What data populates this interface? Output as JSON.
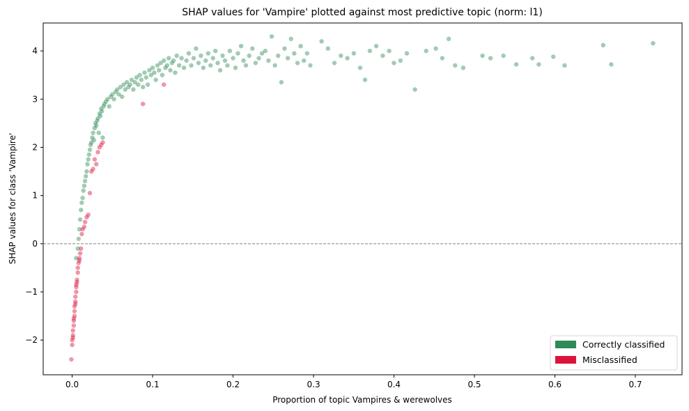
{
  "chart_data": {
    "type": "scatter",
    "title": "SHAP values for 'Vampire' plotted against most predictive topic (norm: l1)",
    "xlabel": "Proportion of topic Vampires & werewolves",
    "ylabel": "SHAP values for class 'Vampire'",
    "xlim": [
      -0.036,
      0.758
    ],
    "ylim": [
      -2.72,
      4.58
    ],
    "xticks": [
      0.0,
      0.1,
      0.2,
      0.3,
      0.4,
      0.5,
      0.6,
      0.7
    ],
    "xtick_labels": [
      "0.0",
      "0.1",
      "0.2",
      "0.3",
      "0.4",
      "0.5",
      "0.6",
      "0.7"
    ],
    "yticks": [
      -2,
      -1,
      0,
      1,
      2,
      3,
      4
    ],
    "ytick_labels": [
      "−2",
      "−1",
      "0",
      "1",
      "2",
      "3",
      "4"
    ],
    "reference_line": {
      "y": 0,
      "style": "dashed",
      "color": "#808080"
    },
    "legend": {
      "position": "lower-right",
      "entries": [
        {
          "label": "Correctly classified",
          "color": "#2e8b57"
        },
        {
          "label": "Misclassified",
          "color": "#dc143c"
        }
      ]
    },
    "series": [
      {
        "name": "Correctly classified",
        "color": "#2e8b57",
        "opacity": 0.45,
        "points": [
          [
            0.005,
            -0.3
          ],
          [
            0.007,
            -0.1
          ],
          [
            0.008,
            0.1
          ],
          [
            0.009,
            0.3
          ],
          [
            0.01,
            0.5
          ],
          [
            0.011,
            0.7
          ],
          [
            0.012,
            0.85
          ],
          [
            0.013,
            0.95
          ],
          [
            0.014,
            1.1
          ],
          [
            0.015,
            1.2
          ],
          [
            0.016,
            1.3
          ],
          [
            0.017,
            1.4
          ],
          [
            0.018,
            1.5
          ],
          [
            0.019,
            1.65
          ],
          [
            0.02,
            1.75
          ],
          [
            0.021,
            1.85
          ],
          [
            0.022,
            1.95
          ],
          [
            0.023,
            2.05
          ],
          [
            0.024,
            2.1
          ],
          [
            0.025,
            2.2
          ],
          [
            0.026,
            2.3
          ],
          [
            0.027,
            2.15
          ],
          [
            0.028,
            2.4
          ],
          [
            0.029,
            2.5
          ],
          [
            0.03,
            2.45
          ],
          [
            0.031,
            2.55
          ],
          [
            0.032,
            2.6
          ],
          [
            0.033,
            2.3
          ],
          [
            0.034,
            2.7
          ],
          [
            0.035,
            2.65
          ],
          [
            0.036,
            2.8
          ],
          [
            0.037,
            2.75
          ],
          [
            0.038,
            2.2
          ],
          [
            0.039,
            2.85
          ],
          [
            0.04,
            2.9
          ],
          [
            0.042,
            2.95
          ],
          [
            0.044,
            3.0
          ],
          [
            0.046,
            2.85
          ],
          [
            0.048,
            3.05
          ],
          [
            0.05,
            3.1
          ],
          [
            0.052,
            3.0
          ],
          [
            0.054,
            3.15
          ],
          [
            0.056,
            3.2
          ],
          [
            0.058,
            3.1
          ],
          [
            0.06,
            3.25
          ],
          [
            0.062,
            3.05
          ],
          [
            0.064,
            3.3
          ],
          [
            0.066,
            3.2
          ],
          [
            0.068,
            3.35
          ],
          [
            0.07,
            3.25
          ],
          [
            0.072,
            3.3
          ],
          [
            0.074,
            3.4
          ],
          [
            0.076,
            3.2
          ],
          [
            0.078,
            3.35
          ],
          [
            0.08,
            3.45
          ],
          [
            0.082,
            3.3
          ],
          [
            0.084,
            3.5
          ],
          [
            0.086,
            3.4
          ],
          [
            0.088,
            3.25
          ],
          [
            0.09,
            3.55
          ],
          [
            0.092,
            3.45
          ],
          [
            0.094,
            3.3
          ],
          [
            0.096,
            3.6
          ],
          [
            0.098,
            3.5
          ],
          [
            0.1,
            3.65
          ],
          [
            0.102,
            3.55
          ],
          [
            0.104,
            3.4
          ],
          [
            0.106,
            3.7
          ],
          [
            0.108,
            3.6
          ],
          [
            0.11,
            3.75
          ],
          [
            0.112,
            3.5
          ],
          [
            0.114,
            3.8
          ],
          [
            0.116,
            3.65
          ],
          [
            0.118,
            3.7
          ],
          [
            0.12,
            3.85
          ],
          [
            0.122,
            3.6
          ],
          [
            0.124,
            3.75
          ],
          [
            0.126,
            3.8
          ],
          [
            0.128,
            3.55
          ],
          [
            0.13,
            3.9
          ],
          [
            0.133,
            3.7
          ],
          [
            0.136,
            3.85
          ],
          [
            0.139,
            3.65
          ],
          [
            0.142,
            3.8
          ],
          [
            0.145,
            3.95
          ],
          [
            0.148,
            3.7
          ],
          [
            0.151,
            3.85
          ],
          [
            0.154,
            4.05
          ],
          [
            0.157,
            3.75
          ],
          [
            0.16,
            3.9
          ],
          [
            0.163,
            3.65
          ],
          [
            0.166,
            3.8
          ],
          [
            0.169,
            3.95
          ],
          [
            0.172,
            3.7
          ],
          [
            0.175,
            3.85
          ],
          [
            0.178,
            4.0
          ],
          [
            0.181,
            3.75
          ],
          [
            0.184,
            3.6
          ],
          [
            0.187,
            3.9
          ],
          [
            0.19,
            3.8
          ],
          [
            0.193,
            3.7
          ],
          [
            0.196,
            4.0
          ],
          [
            0.2,
            3.85
          ],
          [
            0.203,
            3.65
          ],
          [
            0.206,
            3.95
          ],
          [
            0.21,
            4.1
          ],
          [
            0.213,
            3.8
          ],
          [
            0.216,
            3.7
          ],
          [
            0.22,
            3.9
          ],
          [
            0.224,
            4.05
          ],
          [
            0.228,
            3.75
          ],
          [
            0.232,
            3.85
          ],
          [
            0.236,
            3.95
          ],
          [
            0.24,
            4.0
          ],
          [
            0.244,
            3.8
          ],
          [
            0.248,
            4.3
          ],
          [
            0.252,
            3.7
          ],
          [
            0.256,
            3.9
          ],
          [
            0.26,
            3.35
          ],
          [
            0.264,
            4.05
          ],
          [
            0.268,
            3.85
          ],
          [
            0.272,
            4.25
          ],
          [
            0.276,
            3.95
          ],
          [
            0.28,
            3.75
          ],
          [
            0.284,
            4.1
          ],
          [
            0.288,
            3.8
          ],
          [
            0.292,
            3.95
          ],
          [
            0.296,
            3.7
          ],
          [
            0.31,
            4.2
          ],
          [
            0.318,
            4.05
          ],
          [
            0.326,
            3.75
          ],
          [
            0.334,
            3.9
          ],
          [
            0.342,
            3.85
          ],
          [
            0.35,
            3.95
          ],
          [
            0.358,
            3.65
          ],
          [
            0.364,
            3.4
          ],
          [
            0.37,
            4.0
          ],
          [
            0.378,
            4.1
          ],
          [
            0.386,
            3.9
          ],
          [
            0.394,
            4.0
          ],
          [
            0.4,
            3.75
          ],
          [
            0.408,
            3.8
          ],
          [
            0.416,
            3.95
          ],
          [
            0.426,
            3.2
          ],
          [
            0.44,
            4.0
          ],
          [
            0.452,
            4.05
          ],
          [
            0.46,
            3.85
          ],
          [
            0.468,
            4.25
          ],
          [
            0.476,
            3.7
          ],
          [
            0.486,
            3.65
          ],
          [
            0.51,
            3.9
          ],
          [
            0.52,
            3.85
          ],
          [
            0.536,
            3.9
          ],
          [
            0.552,
            3.72
          ],
          [
            0.572,
            3.85
          ],
          [
            0.58,
            3.72
          ],
          [
            0.598,
            3.88
          ],
          [
            0.612,
            3.7
          ],
          [
            0.66,
            4.12
          ],
          [
            0.67,
            3.72
          ],
          [
            0.722,
            4.16
          ]
        ]
      },
      {
        "name": "Misclassified",
        "color": "#dc143c",
        "opacity": 0.45,
        "points": [
          [
            -0.001,
            -2.4
          ],
          [
            0.0,
            -2.1
          ],
          [
            0.0,
            -2.0
          ],
          [
            0.001,
            -1.95
          ],
          [
            0.001,
            -1.9
          ],
          [
            0.001,
            -1.8
          ],
          [
            0.002,
            -1.7
          ],
          [
            0.002,
            -1.6
          ],
          [
            0.002,
            -1.55
          ],
          [
            0.003,
            -1.5
          ],
          [
            0.003,
            -1.4
          ],
          [
            0.003,
            -1.3
          ],
          [
            0.004,
            -1.25
          ],
          [
            0.004,
            -1.2
          ],
          [
            0.004,
            -1.1
          ],
          [
            0.005,
            -1.0
          ],
          [
            0.005,
            -0.9
          ],
          [
            0.005,
            -0.85
          ],
          [
            0.006,
            -0.8
          ],
          [
            0.006,
            -0.75
          ],
          [
            0.007,
            -0.6
          ],
          [
            0.007,
            -0.5
          ],
          [
            0.008,
            -0.4
          ],
          [
            0.009,
            -0.35
          ],
          [
            0.009,
            -0.3
          ],
          [
            0.01,
            -0.2
          ],
          [
            0.011,
            -0.1
          ],
          [
            0.012,
            0.2
          ],
          [
            0.013,
            0.3
          ],
          [
            0.015,
            0.35
          ],
          [
            0.016,
            0.45
          ],
          [
            0.018,
            0.55
          ],
          [
            0.02,
            0.6
          ],
          [
            0.022,
            1.05
          ],
          [
            0.024,
            1.5
          ],
          [
            0.026,
            1.55
          ],
          [
            0.028,
            1.75
          ],
          [
            0.03,
            1.65
          ],
          [
            0.032,
            1.9
          ],
          [
            0.034,
            2.0
          ],
          [
            0.036,
            2.05
          ],
          [
            0.038,
            2.1
          ],
          [
            0.088,
            2.9
          ],
          [
            0.114,
            3.3
          ]
        ]
      }
    ]
  }
}
